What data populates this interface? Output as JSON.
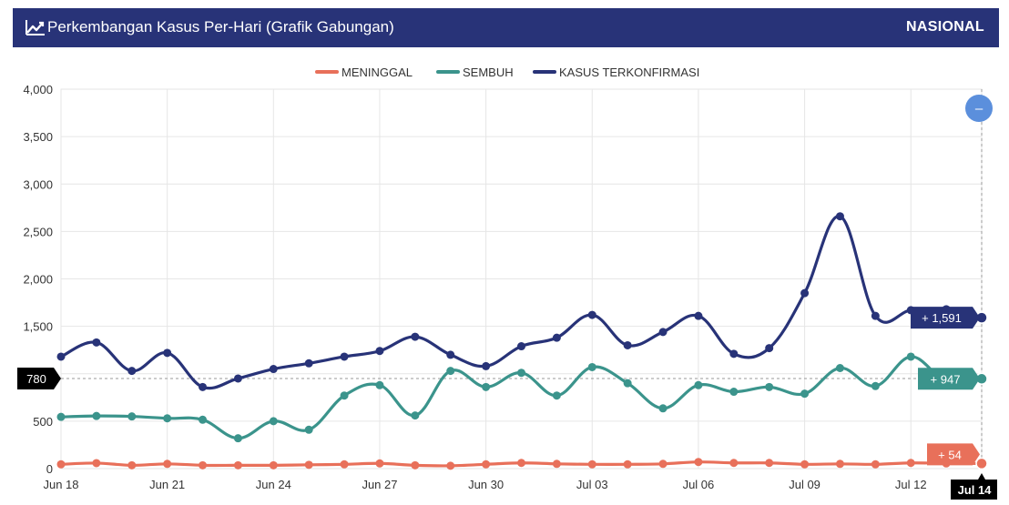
{
  "header": {
    "title": "Perkembangan Kasus Per-Hari (Grafik Gabungan)",
    "scope": "NASIONAL",
    "icon": "line-chart-icon"
  },
  "colors": {
    "header_bg": "#283378",
    "deaths": "#e8705a",
    "recovered": "#3b948c",
    "confirmed": "#283378",
    "zoom_button": "#5b8fdc"
  },
  "zoom_button": {
    "icon": "minus-icon",
    "label": "–"
  },
  "chart_data": {
    "type": "line",
    "x": [
      "Jun 18",
      "Jun 19",
      "Jun 20",
      "Jun 21",
      "Jun 22",
      "Jun 23",
      "Jun 24",
      "Jun 25",
      "Jun 26",
      "Jun 27",
      "Jun 28",
      "Jun 29",
      "Jun 30",
      "Jul 01",
      "Jul 02",
      "Jul 03",
      "Jul 04",
      "Jul 05",
      "Jul 06",
      "Jul 07",
      "Jul 08",
      "Jul 09",
      "Jul 10",
      "Jul 11",
      "Jul 12",
      "Jul 13",
      "Jul 14"
    ],
    "x_tick_labels": [
      "Jun 18",
      "Jun 21",
      "Jun 24",
      "Jun 27",
      "Jun 30",
      "Jul 03",
      "Jul 06",
      "Jul 09",
      "Jul 12",
      "Jul 14"
    ],
    "y_ticks": [
      "0",
      "500",
      "1,000",
      "1,500",
      "2,000",
      "2,500",
      "3,000",
      "3,500",
      "4,000"
    ],
    "ylim": [
      0,
      4000
    ],
    "grid": true,
    "legend_position": "top-center",
    "series": [
      {
        "key": "deaths",
        "name": "MENINGGAL",
        "values": [
          45,
          58,
          35,
          50,
          35,
          35,
          35,
          40,
          45,
          55,
          35,
          30,
          45,
          60,
          50,
          45,
          45,
          50,
          70,
          60,
          60,
          45,
          50,
          45,
          60,
          55,
          54
        ]
      },
      {
        "key": "recovered",
        "name": "SEMBUH",
        "values": [
          545,
          555,
          550,
          530,
          515,
          320,
          500,
          410,
          770,
          880,
          560,
          1030,
          860,
          1010,
          770,
          1070,
          900,
          635,
          880,
          810,
          860,
          790,
          1060,
          870,
          1180,
          920,
          947
        ]
      },
      {
        "key": "confirmed",
        "name": "KASUS TERKONFIRMASI",
        "values": [
          1180,
          1330,
          1030,
          1220,
          860,
          950,
          1050,
          1110,
          1180,
          1240,
          1390,
          1200,
          1080,
          1290,
          1380,
          1620,
          1300,
          1440,
          1610,
          1210,
          1270,
          1850,
          2660,
          1610,
          1670,
          1680,
          1591
        ]
      }
    ],
    "last_value_labels": {
      "deaths": "+ 54",
      "recovered": "+ 947",
      "confirmed": "+ 1,591"
    },
    "crosshair": {
      "y_label": "780",
      "x_label": "Jul 14"
    }
  }
}
